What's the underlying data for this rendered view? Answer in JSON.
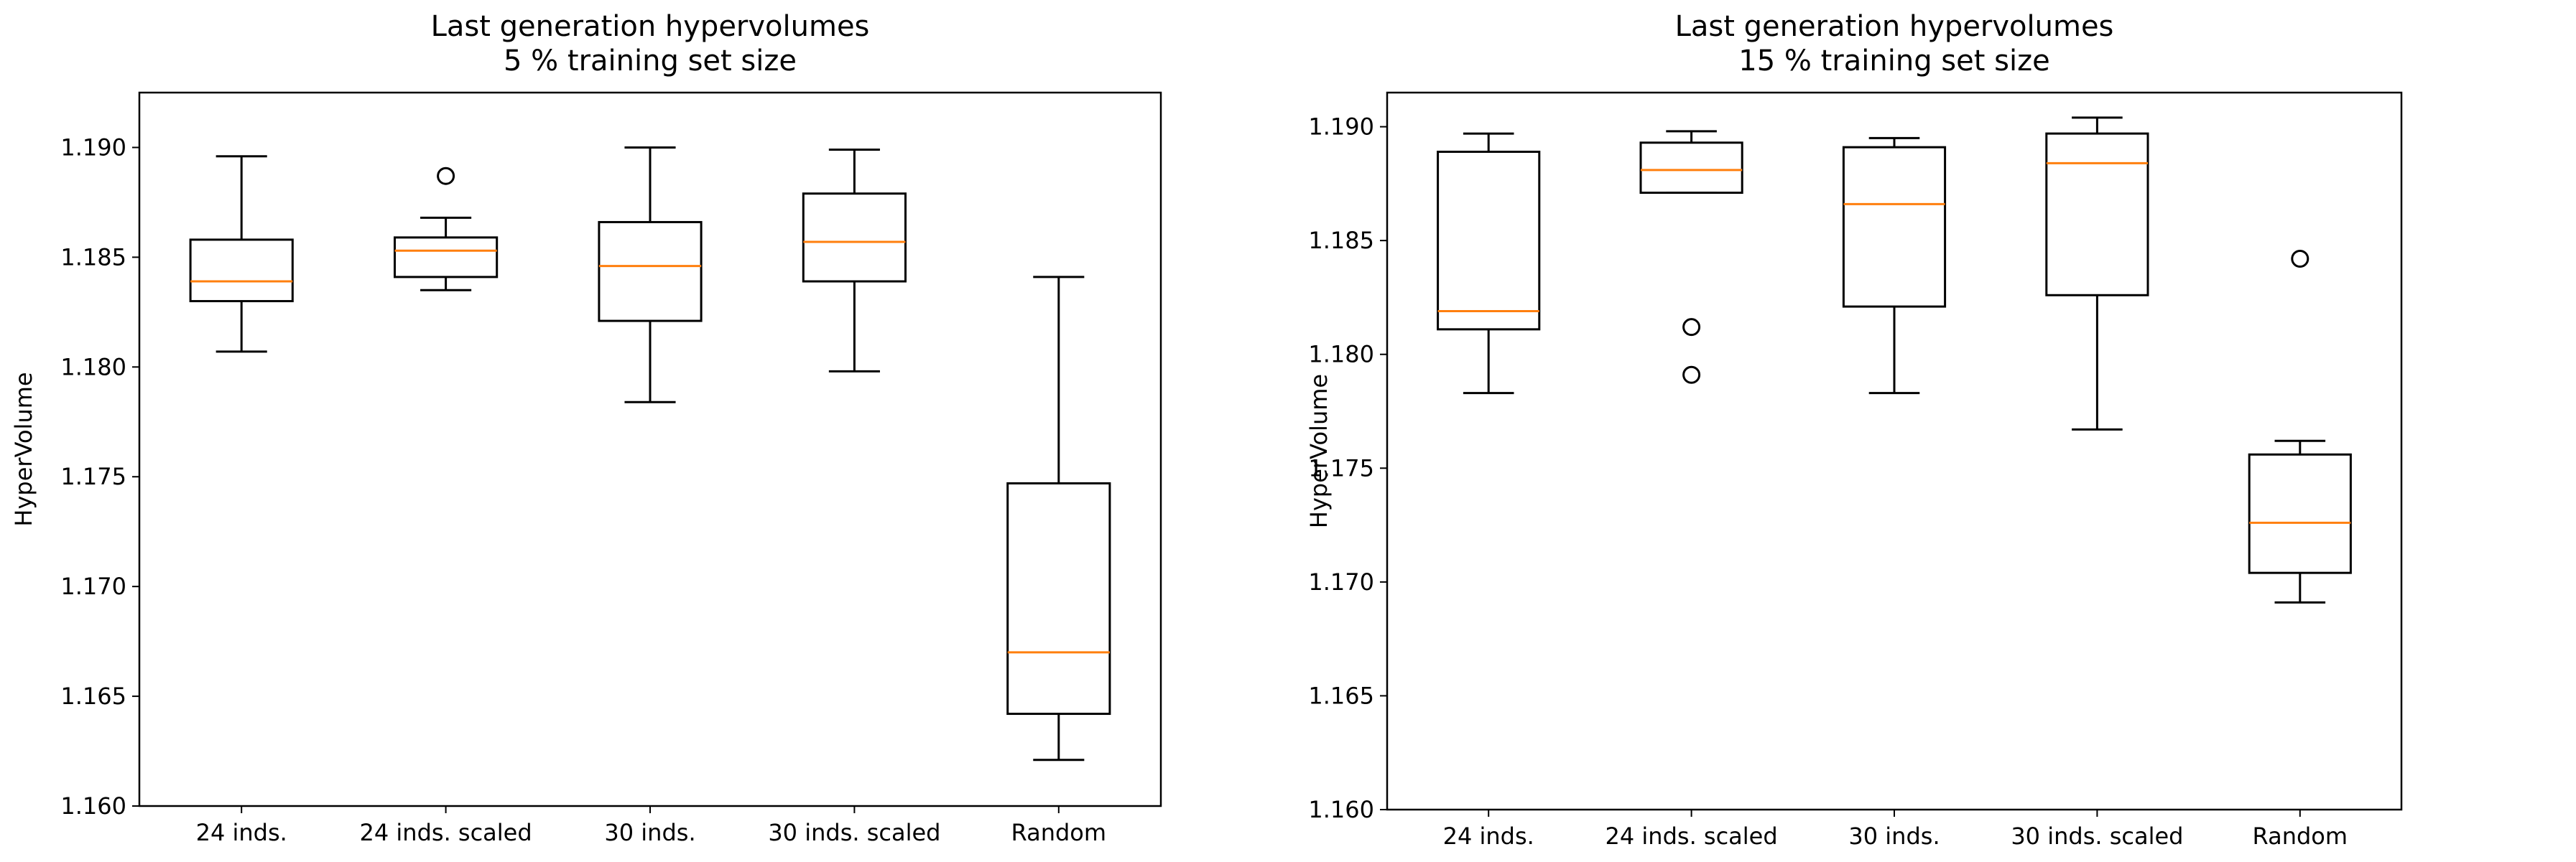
{
  "chart_data": [
    {
      "type": "boxplot",
      "title": "Last generation hypervolumes\n5 % training set size",
      "xlabel": "",
      "ylabel": "HyperVolume",
      "ylim": [
        1.16,
        1.1925
      ],
      "yticks": [
        "1.160",
        "1.165",
        "1.170",
        "1.175",
        "1.180",
        "1.185",
        "1.190"
      ],
      "ytick_values": [
        1.16,
        1.165,
        1.17,
        1.175,
        1.18,
        1.185,
        1.19
      ],
      "categories": [
        "24 inds.",
        "24 inds. scaled",
        "30 inds.",
        "30 inds. scaled",
        "Random"
      ],
      "series": [
        {
          "name": "24 inds.",
          "whisker_low": 1.1807,
          "q1": 1.183,
          "median": 1.1839,
          "q3": 1.1858,
          "whisker_high": 1.1896,
          "outliers": []
        },
        {
          "name": "24 inds. scaled",
          "whisker_low": 1.1835,
          "q1": 1.1841,
          "median": 1.1853,
          "q3": 1.1859,
          "whisker_high": 1.1868,
          "outliers": [
            1.1887
          ]
        },
        {
          "name": "30 inds.",
          "whisker_low": 1.1784,
          "q1": 1.1821,
          "median": 1.1846,
          "q3": 1.1866,
          "whisker_high": 1.19,
          "outliers": []
        },
        {
          "name": "30 inds. scaled",
          "whisker_low": 1.1798,
          "q1": 1.1839,
          "median": 1.1857,
          "q3": 1.1879,
          "whisker_high": 1.1899,
          "outliers": []
        },
        {
          "name": "Random",
          "whisker_low": 1.1621,
          "q1": 1.1642,
          "median": 1.167,
          "q3": 1.1747,
          "whisker_high": 1.1841,
          "outliers": []
        }
      ]
    },
    {
      "type": "boxplot",
      "title": "Last generation hypervolumes\n15 % training set size",
      "xlabel": "",
      "ylabel": "HyperVolume",
      "ylim": [
        1.16,
        1.1915
      ],
      "yticks": [
        "1.160",
        "1.165",
        "1.170",
        "1.175",
        "1.180",
        "1.185",
        "1.190"
      ],
      "ytick_values": [
        1.16,
        1.165,
        1.17,
        1.175,
        1.18,
        1.185,
        1.19
      ],
      "categories": [
        "24 inds.",
        "24 inds. scaled",
        "30 inds.",
        "30 inds. scaled",
        "Random"
      ],
      "series": [
        {
          "name": "24 inds.",
          "whisker_low": 1.1783,
          "q1": 1.1811,
          "median": 1.1819,
          "q3": 1.1889,
          "whisker_high": 1.1897,
          "outliers": []
        },
        {
          "name": "24 inds. scaled",
          "whisker_low": 1.1871,
          "q1": 1.1871,
          "median": 1.1881,
          "q3": 1.1893,
          "whisker_high": 1.1898,
          "outliers": [
            1.1812,
            1.1791
          ]
        },
        {
          "name": "30 inds.",
          "whisker_low": 1.1783,
          "q1": 1.1821,
          "median": 1.1866,
          "q3": 1.1891,
          "whisker_high": 1.1895,
          "outliers": []
        },
        {
          "name": "30 inds. scaled",
          "whisker_low": 1.1767,
          "q1": 1.1826,
          "median": 1.1884,
          "q3": 1.1897,
          "whisker_high": 1.1904,
          "outliers": []
        },
        {
          "name": "Random",
          "whisker_low": 1.1691,
          "q1": 1.1704,
          "median": 1.1726,
          "q3": 1.1756,
          "whisker_high": 1.1762,
          "outliers": [
            1.1842
          ]
        }
      ]
    }
  ]
}
